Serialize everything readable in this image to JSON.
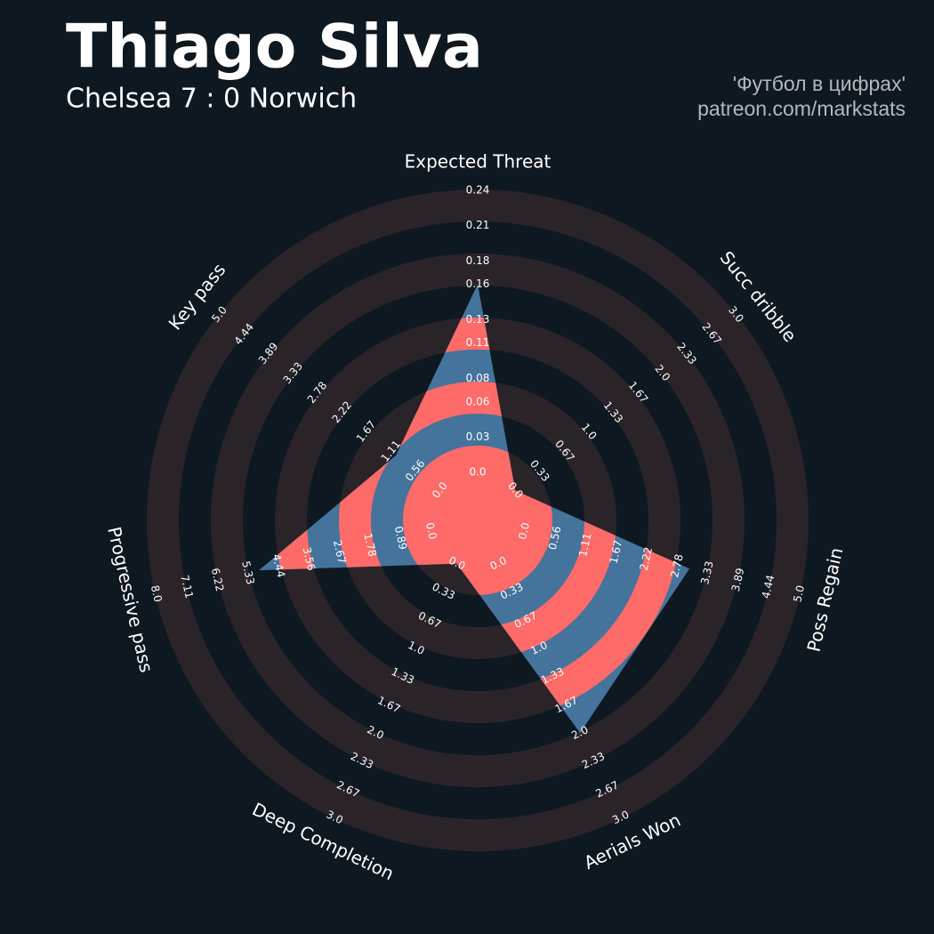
{
  "chart_data": {
    "type": "radar",
    "title": "Thiago Silva",
    "subtitle": "Chelsea 7 : 0 Norwich",
    "credits": [
      "'Футбол в цифрах'",
      "patreon.com/markstats"
    ],
    "categories": [
      "Expected Threat",
      "Succ dribble",
      "Poss Regain",
      "Aerials Won",
      "Deep Completion",
      "Progressive pass",
      "Key pass"
    ],
    "values": [
      0.16,
      0,
      3,
      2,
      0,
      5,
      1
    ],
    "ranges": [
      [
        0,
        0.24
      ],
      [
        0,
        3
      ],
      [
        0,
        5
      ],
      [
        0,
        3
      ],
      [
        0,
        3
      ],
      [
        0,
        8
      ],
      [
        0,
        5
      ]
    ],
    "ticks": [
      [
        {
          "value": 0,
          "label": "0.0"
        },
        0.03,
        0.06,
        0.08,
        0.11,
        0.13,
        0.16,
        0.18,
        0.21,
        0.24
      ],
      [
        {
          "value": 0,
          "label": "0.0"
        },
        0.33,
        0.67,
        {
          "value": 1,
          "label": "1.0"
        },
        1.33,
        1.67,
        {
          "value": 2,
          "label": "2.0"
        },
        2.33,
        2.67,
        {
          "value": 3,
          "label": "3.0"
        }
      ],
      [
        {
          "value": 0,
          "label": "0.0"
        },
        0.56,
        1.11,
        1.67,
        2.22,
        2.78,
        3.33,
        3.89,
        4.44,
        {
          "value": 5,
          "label": "5.0"
        }
      ],
      [
        {
          "value": 0,
          "label": "0.0"
        },
        0.33,
        0.67,
        {
          "value": 1,
          "label": "1.0"
        },
        1.33,
        1.67,
        {
          "value": 2,
          "label": "2.0"
        },
        2.33,
        2.67,
        {
          "value": 3,
          "label": "3.0"
        }
      ],
      [
        {
          "value": 0,
          "label": "0.0"
        },
        0.33,
        0.67,
        {
          "value": 1,
          "label": "1.0"
        },
        1.33,
        1.67,
        {
          "value": 2,
          "label": "2.0"
        },
        2.33,
        2.67,
        {
          "value": 3,
          "label": "3.0"
        }
      ],
      [
        {
          "value": 0,
          "label": "0.0"
        },
        0.89,
        1.78,
        2.67,
        3.56,
        4.44,
        5.33,
        6.22,
        7.11,
        {
          "value": 8,
          "label": "8.0"
        }
      ],
      [
        {
          "value": 0,
          "label": "0.0"
        },
        0.56,
        1.11,
        1.67,
        2.22,
        2.78,
        3.33,
        3.89,
        4.44,
        {
          "value": 5,
          "label": "5.0"
        }
      ]
    ],
    "color": "#44739c",
    "alt_color": "#ff6b68"
  }
}
